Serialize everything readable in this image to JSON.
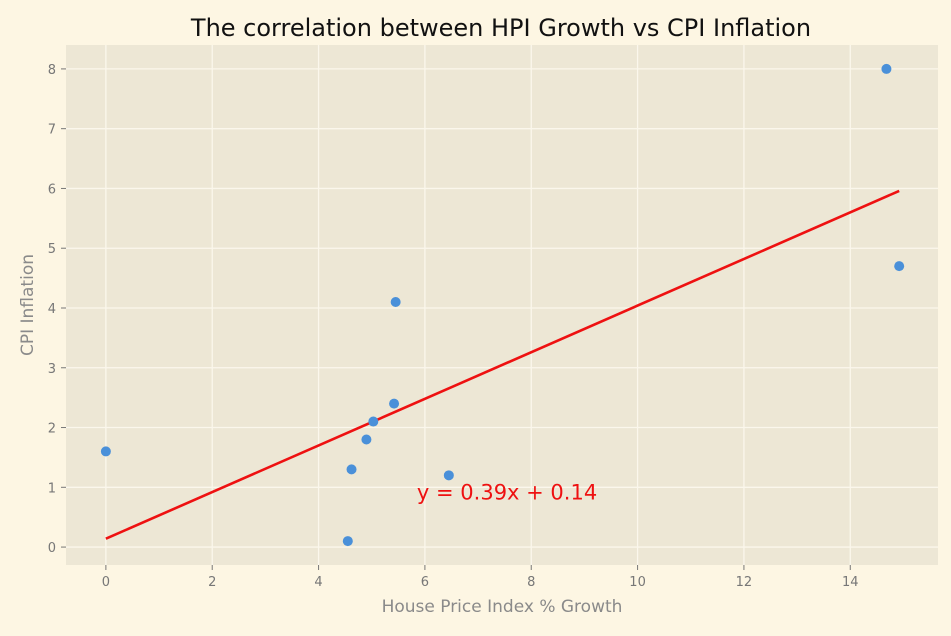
{
  "chart_data": {
    "type": "scatter",
    "title": "The correlation between HPI Growth vs CPI Inflation",
    "xlabel": "House Price Index % Growth",
    "ylabel": "CPI Inflation",
    "xlim": [
      -0.75,
      15.65
    ],
    "ylim": [
      -0.3,
      8.4
    ],
    "xticks": [
      0,
      2,
      4,
      6,
      8,
      10,
      12,
      14
    ],
    "yticks": [
      0,
      1,
      2,
      3,
      4,
      5,
      6,
      7,
      8
    ],
    "grid": true,
    "series": [
      {
        "x": [
          0.0,
          4.55,
          4.62,
          4.9,
          5.03,
          5.42,
          5.45,
          6.45,
          14.68,
          14.92
        ],
        "y": [
          1.6,
          0.1,
          1.3,
          1.8,
          2.1,
          2.4,
          4.1,
          1.2,
          8.0,
          4.7
        ],
        "color": "#4a90d9"
      }
    ],
    "trendline": {
      "slope": 0.39,
      "intercept": 0.14,
      "x_range": [
        0,
        14.92
      ],
      "color": "#ee1111"
    },
    "annotation": {
      "text": "y = 0.39x + 0.14",
      "x": 5.85,
      "y": 0.8,
      "color": "#ee1111"
    },
    "colors": {
      "figure_background": "#fdf6e3",
      "plot_background": "#ede7d5",
      "grid": "#fbf7ec",
      "points": "#4a90d9",
      "trendline": "#ee1111"
    }
  }
}
